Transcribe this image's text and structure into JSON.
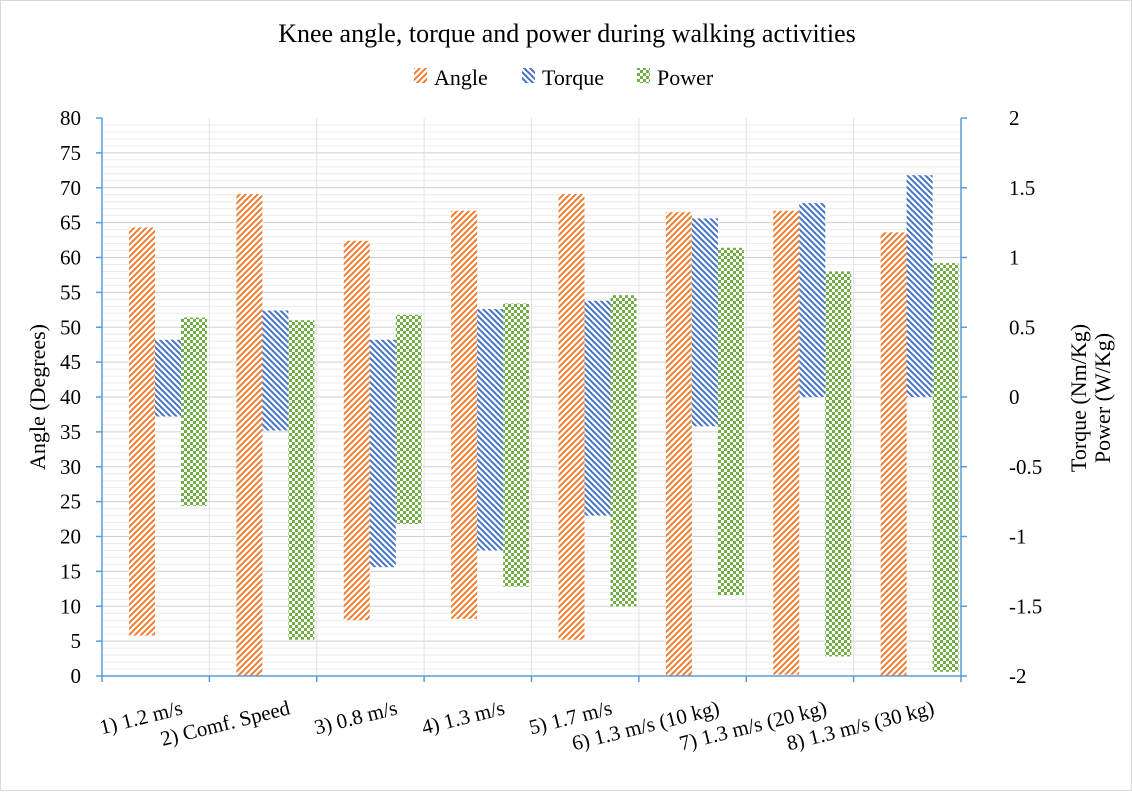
{
  "chart_data": {
    "type": "bar",
    "title": "Knee  angle, torque and power during walking activities",
    "ylabel": "Angle (Degrees)",
    "y2label_lines": [
      "Torque (Nm/Kg)",
      "Power (W/Kg)"
    ],
    "ylim": [
      0,
      80
    ],
    "y2lim": [
      -2,
      2
    ],
    "y_ticks": [
      "80",
      "75",
      "70",
      "65",
      "60",
      "55",
      "50",
      "45",
      "40",
      "35",
      "30",
      "25",
      "20",
      "15",
      "10",
      "5",
      "0"
    ],
    "y2_ticks": [
      "2",
      "1.5",
      "1",
      "0.5",
      "0",
      "-0.5",
      "-1",
      "-1.5",
      "-2"
    ],
    "legend_position": "top",
    "categories": [
      "1) 1.2 m/s",
      "2) Comf. Speed",
      "3) 0.8 m/s",
      "4) 1.3 m/s",
      "5) 1.7 m/s",
      "6) 1.3 m/s (10 kg)",
      "7) 1.3 m/s (20 kg)",
      "8) 1.3 m/s (30 kg)"
    ],
    "series": [
      {
        "name": "Angle",
        "axis": "left",
        "color": "#ed7d31",
        "pattern": "diagonal-stripes",
        "ranges": [
          [
            5.8,
            64.3
          ],
          [
            0,
            69.1
          ],
          [
            8.0,
            62.4
          ],
          [
            8.2,
            66.7
          ],
          [
            5.2,
            69.1
          ],
          [
            0,
            66.5
          ],
          [
            0.2,
            66.7
          ],
          [
            0,
            63.6
          ]
        ]
      },
      {
        "name": "Torque",
        "axis": "right",
        "color": "#4472c4",
        "pattern": "reverse-diagonal-stripes",
        "ranges": [
          [
            -0.14,
            0.41
          ],
          [
            -0.24,
            0.62
          ],
          [
            -1.22,
            0.41
          ],
          [
            -1.1,
            0.63
          ],
          [
            -0.85,
            0.69
          ],
          [
            -0.21,
            1.28
          ],
          [
            0.0,
            1.39
          ],
          [
            0.0,
            1.59
          ]
        ]
      },
      {
        "name": "Power",
        "axis": "right",
        "color": "#70ad47",
        "pattern": "checkerboard",
        "ranges": [
          [
            -0.78,
            0.57
          ],
          [
            -1.74,
            0.55
          ],
          [
            -0.91,
            0.59
          ],
          [
            -1.36,
            0.67
          ],
          [
            -1.5,
            0.73
          ],
          [
            -1.42,
            1.07
          ],
          [
            -1.86,
            0.9
          ],
          [
            -1.97,
            0.96
          ]
        ]
      }
    ]
  }
}
